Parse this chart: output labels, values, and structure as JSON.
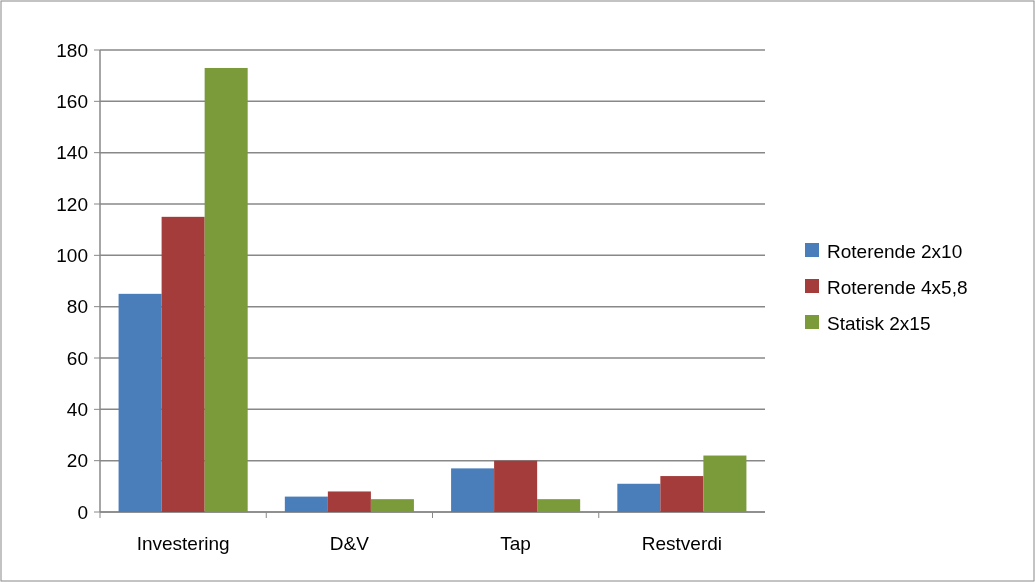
{
  "chart_data": {
    "type": "bar",
    "categories": [
      "Investering",
      "D&V",
      "Tap",
      "Restverdi"
    ],
    "series": [
      {
        "name": "Roterende 2x10",
        "color": "#4a7ebb",
        "values": [
          85,
          6,
          17,
          11
        ]
      },
      {
        "name": "Roterende 4x5,8",
        "color": "#a33c3a",
        "values": [
          115,
          8,
          20,
          14
        ]
      },
      {
        "name": "Statisk 2x15",
        "color": "#7b9a3a",
        "values": [
          173,
          5,
          5,
          22
        ]
      }
    ],
    "ylim": [
      0,
      180
    ],
    "yticks": [
      0,
      20,
      40,
      60,
      80,
      100,
      120,
      140,
      160,
      180
    ],
    "grid": "y",
    "legend": "right"
  }
}
